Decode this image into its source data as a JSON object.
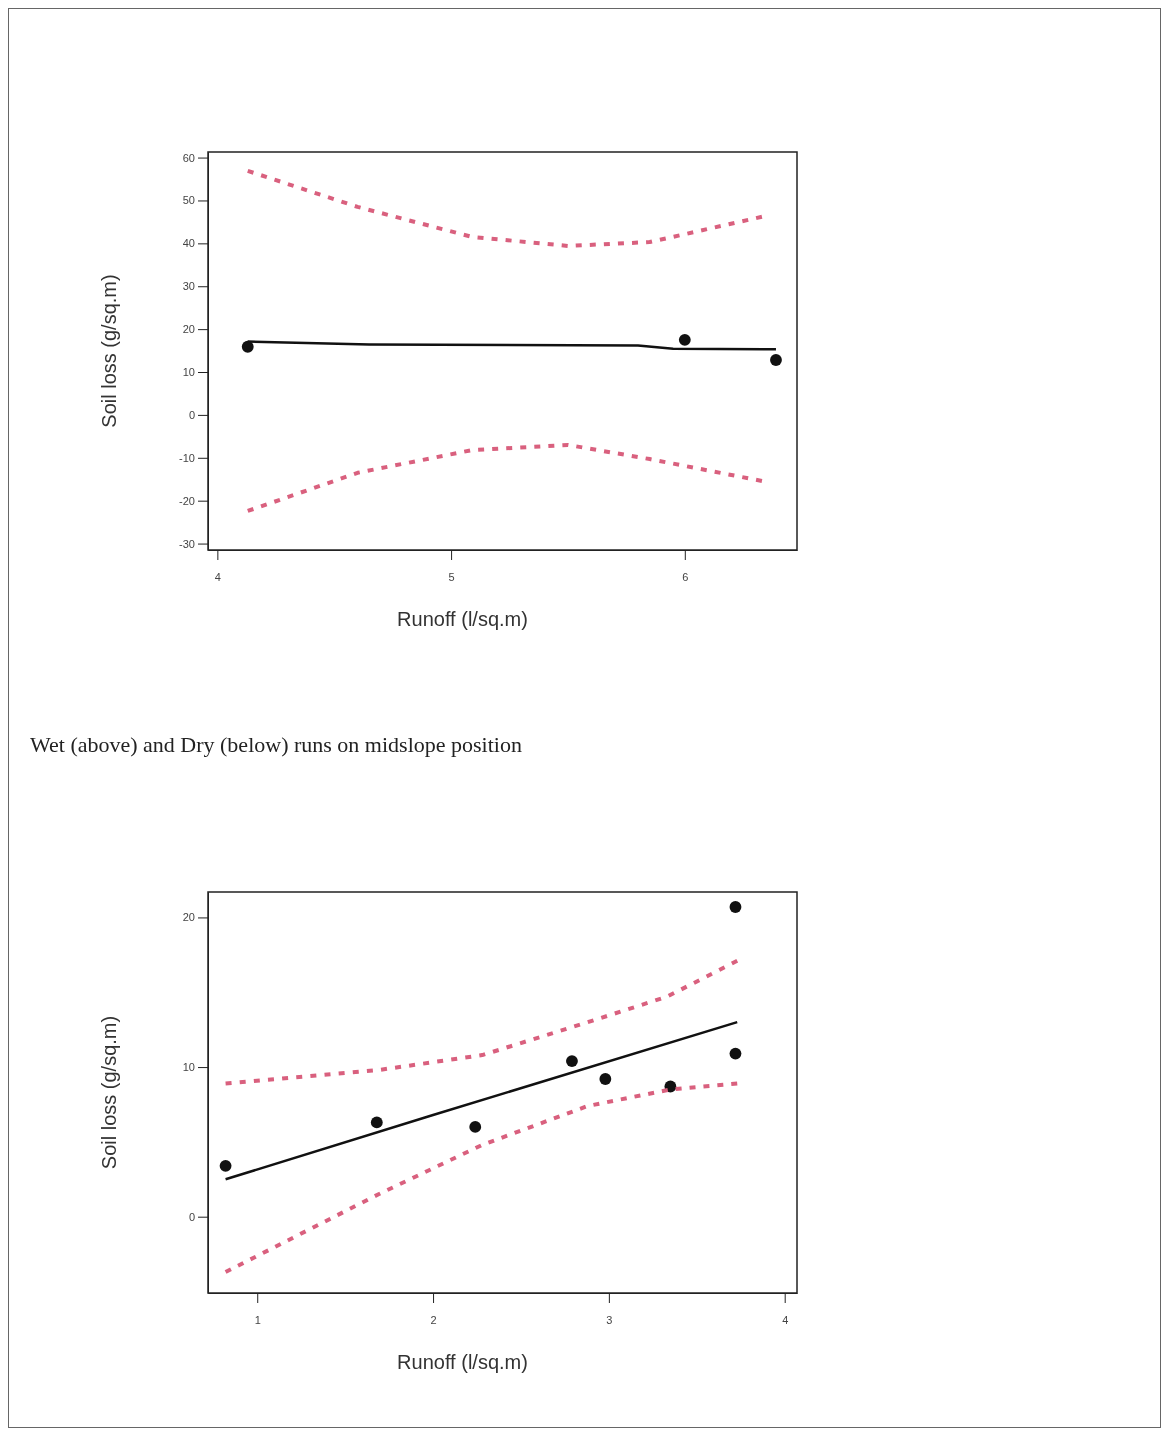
{
  "chart_data": [
    {
      "type": "scatter",
      "xlabel": "Runoff (l/sq.m)",
      "ylabel": "Soil loss (g/sq.m)",
      "xlim": [
        3.96,
        6.48
      ],
      "xticks": [
        4,
        5,
        6
      ],
      "ylim": [
        -31.5,
        61.3
      ],
      "yticks": [
        -30,
        -20,
        -10,
        0,
        10,
        20,
        30,
        40,
        50,
        60
      ],
      "series": [
        {
          "marker": "circle",
          "color": "#111111",
          "x": [
            4.13,
            6.0,
            6.39
          ],
          "values": [
            15.9,
            17.5,
            12.8
          ]
        },
        {
          "type": "line",
          "color": "#111111",
          "line_style": "solid",
          "x": [
            4.13,
            4.65,
            5.8,
            5.95,
            6.39
          ],
          "values": [
            17.1,
            16.4,
            16.2,
            15.4,
            15.3
          ]
        },
        {
          "type": "line",
          "color": "#d9607e",
          "line_style": "dashed",
          "x": [
            4.13,
            4.6,
            5.09,
            5.5,
            5.85,
            6.33
          ],
          "values": [
            56.9,
            48.5,
            41.5,
            39.4,
            40.3,
            46.2
          ]
        },
        {
          "type": "line",
          "color": "#d9607e",
          "line_style": "dashed",
          "x": [
            4.13,
            4.6,
            5.09,
            5.5,
            5.85,
            6.33
          ],
          "values": [
            -22.4,
            -13.5,
            -8.2,
            -7.0,
            -10.3,
            -15.4
          ]
        }
      ]
    },
    {
      "type": "scatter",
      "title": "Wet (above) and Dry (below) runs on midslope position",
      "xlabel": "Runoff (l/sq.m)",
      "ylabel": "Soil loss (g/sq.m)",
      "xlim": [
        0.72,
        4.07
      ],
      "xticks": [
        1,
        2,
        3,
        4
      ],
      "ylim": [
        -5.1,
        21.7
      ],
      "yticks": [
        0,
        10,
        20
      ],
      "series": [
        {
          "marker": "circle",
          "color": "#111111",
          "x": [
            0.82,
            1.68,
            2.24,
            2.79,
            2.98,
            3.35,
            3.72,
            3.72
          ],
          "values": [
            3.4,
            6.3,
            6.0,
            10.4,
            9.2,
            8.7,
            20.7,
            10.9
          ]
        },
        {
          "type": "line",
          "color": "#111111",
          "line_style": "solid",
          "x": [
            0.82,
            2.0,
            3.73
          ],
          "values": [
            2.5,
            6.8,
            13.0
          ]
        },
        {
          "type": "line",
          "color": "#d9607e",
          "line_style": "dashed",
          "x": [
            0.82,
            1.69,
            2.28,
            2.88,
            3.33,
            3.73
          ],
          "values": [
            8.9,
            9.8,
            10.8,
            13.0,
            14.7,
            17.1
          ]
        },
        {
          "type": "line",
          "color": "#d9607e",
          "line_style": "dashed",
          "x": [
            0.82,
            1.69,
            2.28,
            2.88,
            3.35,
            3.73
          ],
          "values": [
            -3.7,
            1.5,
            4.8,
            7.4,
            8.5,
            8.9
          ]
        }
      ]
    }
  ]
}
